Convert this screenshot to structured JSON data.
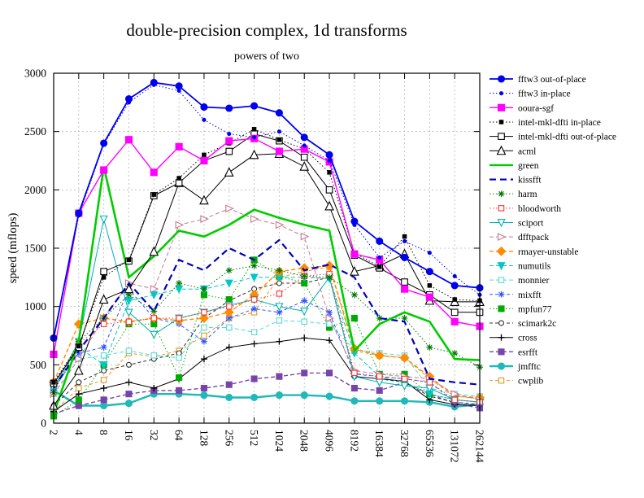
{
  "chart_data": {
    "type": "line",
    "title": "double-precision complex, 1d transforms",
    "subtitle": "powers of two",
    "xlabel": "",
    "ylabel": "speed (mflops)",
    "ylim": [
      0,
      3000
    ],
    "yticks": [
      0,
      500,
      1000,
      1500,
      2000,
      2500,
      3000
    ],
    "grid": true,
    "legend_position": "right",
    "categories": [
      "2",
      "4",
      "8",
      "16",
      "32",
      "64",
      "128",
      "256",
      "512",
      "1024",
      "2048",
      "4096",
      "8192",
      "16384",
      "32768",
      "65536",
      "131072",
      "262144"
    ],
    "series": [
      {
        "name": "fftw3 out-of-place",
        "color": "#0000ee",
        "marker": "circle",
        "filled": true,
        "msize": 4,
        "line": "solid",
        "width": 1.8,
        "values": [
          730,
          1800,
          2400,
          2780,
          2920,
          2890,
          2710,
          2700,
          2720,
          2660,
          2450,
          2300,
          1730,
          1560,
          1420,
          1300,
          1180,
          1160
        ]
      },
      {
        "name": "fftw3 in-place",
        "color": "#0000ee",
        "marker": "circle",
        "filled": true,
        "msize": 2,
        "line": "dotted",
        "width": 1,
        "values": [
          720,
          1780,
          2390,
          2750,
          2900,
          2850,
          2600,
          2480,
          2450,
          2500,
          2380,
          2250,
          1700,
          1420,
          1560,
          1460,
          1260,
          1100
        ]
      },
      {
        "name": "ooura-sgf",
        "color": "#ff00ff",
        "marker": "square",
        "filled": true,
        "msize": 4,
        "line": "solid",
        "width": 1.4,
        "values": [
          590,
          1800,
          2170,
          2430,
          2150,
          2370,
          2250,
          2420,
          2440,
          2330,
          2350,
          2240,
          1450,
          1400,
          1150,
          1080,
          870,
          830
        ]
      },
      {
        "name": "intel-mkl-dfti in-place",
        "color": "#000000",
        "marker": "square",
        "filled": true,
        "msize": 2.2,
        "line": "dotted",
        "width": 1,
        "values": [
          350,
          660,
          1250,
          1400,
          1960,
          2100,
          2300,
          2400,
          2520,
          2430,
          2350,
          2150,
          1460,
          1340,
          1600,
          1180,
          1060,
          1050
        ]
      },
      {
        "name": "intel-mkl-dfti out-of-place",
        "color": "#000000",
        "marker": "square",
        "filled": false,
        "msize": 3.8,
        "line": "solid",
        "width": 1,
        "values": [
          340,
          650,
          1300,
          1390,
          1950,
          2060,
          2250,
          2330,
          2480,
          2420,
          2280,
          2000,
          1440,
          1330,
          1210,
          1100,
          950,
          950
        ]
      },
      {
        "name": "acml",
        "color": "#000000",
        "marker": "triangle-up",
        "filled": false,
        "msize": 4.5,
        "line": "solid",
        "width": 1,
        "values": [
          150,
          450,
          1060,
          1150,
          1470,
          2060,
          1910,
          2150,
          2300,
          2310,
          2200,
          1860,
          1300,
          1350,
          1450,
          1050,
          1040,
          1040
        ]
      },
      {
        "name": "green",
        "color": "#00cc00",
        "marker": "none",
        "filled": false,
        "msize": 0,
        "line": "solid",
        "width": 2.6,
        "values": [
          80,
          700,
          2200,
          1250,
          1430,
          1650,
          1600,
          1700,
          1830,
          1760,
          1700,
          1650,
          620,
          850,
          950,
          870,
          550,
          540
        ]
      },
      {
        "name": "kissfft",
        "color": "#0000bb",
        "marker": "none",
        "filled": false,
        "msize": 0,
        "line": "dashed",
        "width": 2.2,
        "values": [
          300,
          620,
          900,
          1200,
          960,
          1400,
          1310,
          1500,
          1400,
          1570,
          1310,
          1360,
          1250,
          900,
          870,
          380,
          350,
          330
        ]
      },
      {
        "name": "harm",
        "color": "#007700",
        "marker": "asterisk",
        "filled": false,
        "msize": 4,
        "line": "dotted",
        "width": 1,
        "values": [
          260,
          700,
          900,
          1100,
          960,
          1200,
          1150,
          1310,
          1350,
          1310,
          1260,
          1250,
          1100,
          900,
          900,
          650,
          600,
          480
        ]
      },
      {
        "name": "bloodworth",
        "color": "#ff3333",
        "marker": "square",
        "filled": false,
        "msize": 3.2,
        "line": "dotted",
        "width": 1,
        "values": [
          350,
          680,
          850,
          870,
          900,
          900,
          950,
          1000,
          1060,
          1110,
          1260,
          1280,
          430,
          400,
          380,
          350,
          200,
          180
        ]
      },
      {
        "name": "sciport",
        "color": "#00b0b0",
        "marker": "triangle-down",
        "filled": false,
        "msize": 3.8,
        "line": "solid",
        "width": 1,
        "values": [
          300,
          700,
          1750,
          950,
          760,
          900,
          950,
          1010,
          1060,
          1000,
          960,
          1250,
          400,
          350,
          320,
          300,
          200,
          180
        ]
      },
      {
        "name": "dfftpack",
        "color": "#c87890",
        "marker": "triangle-right",
        "filled": false,
        "msize": 4,
        "line": "dash-med",
        "width": 1,
        "values": [
          250,
          550,
          900,
          1200,
          1150,
          1700,
          1750,
          1840,
          1750,
          1700,
          1600,
          900,
          450,
          420,
          400,
          380,
          250,
          200
        ]
      },
      {
        "name": "rmayer-unstable",
        "color": "#ff8c00",
        "marker": "diamond",
        "filled": true,
        "msize": 4,
        "line": "dash-med",
        "width": 1.4,
        "values": [
          350,
          850,
          900,
          870,
          900,
          880,
          900,
          950,
          1100,
          1300,
          1330,
          1350,
          640,
          580,
          560,
          400,
          230,
          220
        ]
      },
      {
        "name": "numutils",
        "color": "#00c8c8",
        "marker": "triangle-down",
        "filled": true,
        "msize": 3.8,
        "line": "dash-med",
        "width": 1,
        "values": [
          300,
          650,
          500,
          1050,
          1100,
          1150,
          1150,
          1200,
          1250,
          1250,
          1250,
          1240,
          600,
          400,
          350,
          250,
          200,
          180
        ]
      },
      {
        "name": "monnier",
        "color": "#58d8d8",
        "marker": "square",
        "filled": false,
        "msize": 3.2,
        "line": "dash-med",
        "width": 1,
        "values": [
          250,
          550,
          580,
          620,
          580,
          560,
          820,
          820,
          780,
          880,
          870,
          850,
          630,
          600,
          580,
          300,
          250,
          230
        ]
      },
      {
        "name": "mixfft",
        "color": "#3355ff",
        "marker": "asterisk",
        "filled": false,
        "msize": 4,
        "line": "dash-short",
        "width": 1,
        "values": [
          300,
          600,
          650,
          1150,
          900,
          850,
          700,
          900,
          980,
          950,
          1050,
          950,
          420,
          400,
          380,
          350,
          180,
          150
        ]
      },
      {
        "name": "mpfun77",
        "color": "#00aa00",
        "marker": "square",
        "filled": true,
        "msize": 3.5,
        "line": "dotted",
        "width": 1,
        "values": [
          60,
          200,
          500,
          850,
          850,
          390,
          1100,
          1060,
          1400,
          1260,
          1200,
          820,
          900,
          420,
          420,
          250,
          200,
          180
        ]
      },
      {
        "name": "scimark2c",
        "color": "#303030",
        "marker": "circle",
        "filled": false,
        "msize": 3,
        "line": "dash-short",
        "width": 1,
        "values": [
          150,
          350,
          450,
          500,
          550,
          600,
          900,
          1050,
          1150,
          1200,
          1200,
          1250,
          400,
          380,
          350,
          230,
          180,
          160
        ]
      },
      {
        "name": "cross",
        "color": "#000000",
        "marker": "plus",
        "filled": false,
        "msize": 4,
        "line": "solid",
        "width": 1,
        "values": [
          100,
          250,
          300,
          350,
          300,
          380,
          550,
          650,
          680,
          700,
          730,
          710,
          400,
          380,
          360,
          200,
          160,
          150
        ]
      },
      {
        "name": "esrfft",
        "color": "#7744aa",
        "marker": "square",
        "filled": true,
        "msize": 3.5,
        "line": "dash-med",
        "width": 1.4,
        "values": [
          80,
          150,
          200,
          250,
          280,
          280,
          300,
          330,
          380,
          400,
          430,
          430,
          300,
          280,
          350,
          250,
          170,
          130
        ]
      },
      {
        "name": "jmfftc",
        "color": "#20b8b8",
        "marker": "circle",
        "filled": true,
        "msize": 4,
        "line": "solid",
        "width": 2.4,
        "values": [
          280,
          150,
          150,
          170,
          250,
          250,
          240,
          220,
          220,
          240,
          240,
          230,
          190,
          190,
          190,
          180,
          140,
          160
        ]
      },
      {
        "name": "cwplib",
        "color": "#dd9922",
        "marker": "square",
        "filled": false,
        "msize": 3.2,
        "line": "dash-short",
        "width": 1,
        "values": [
          100,
          300,
          370,
          600,
          570,
          620,
          750,
          900,
          950,
          1250,
          1300,
          1340,
          620,
          580,
          560,
          380,
          230,
          210
        ]
      }
    ]
  }
}
